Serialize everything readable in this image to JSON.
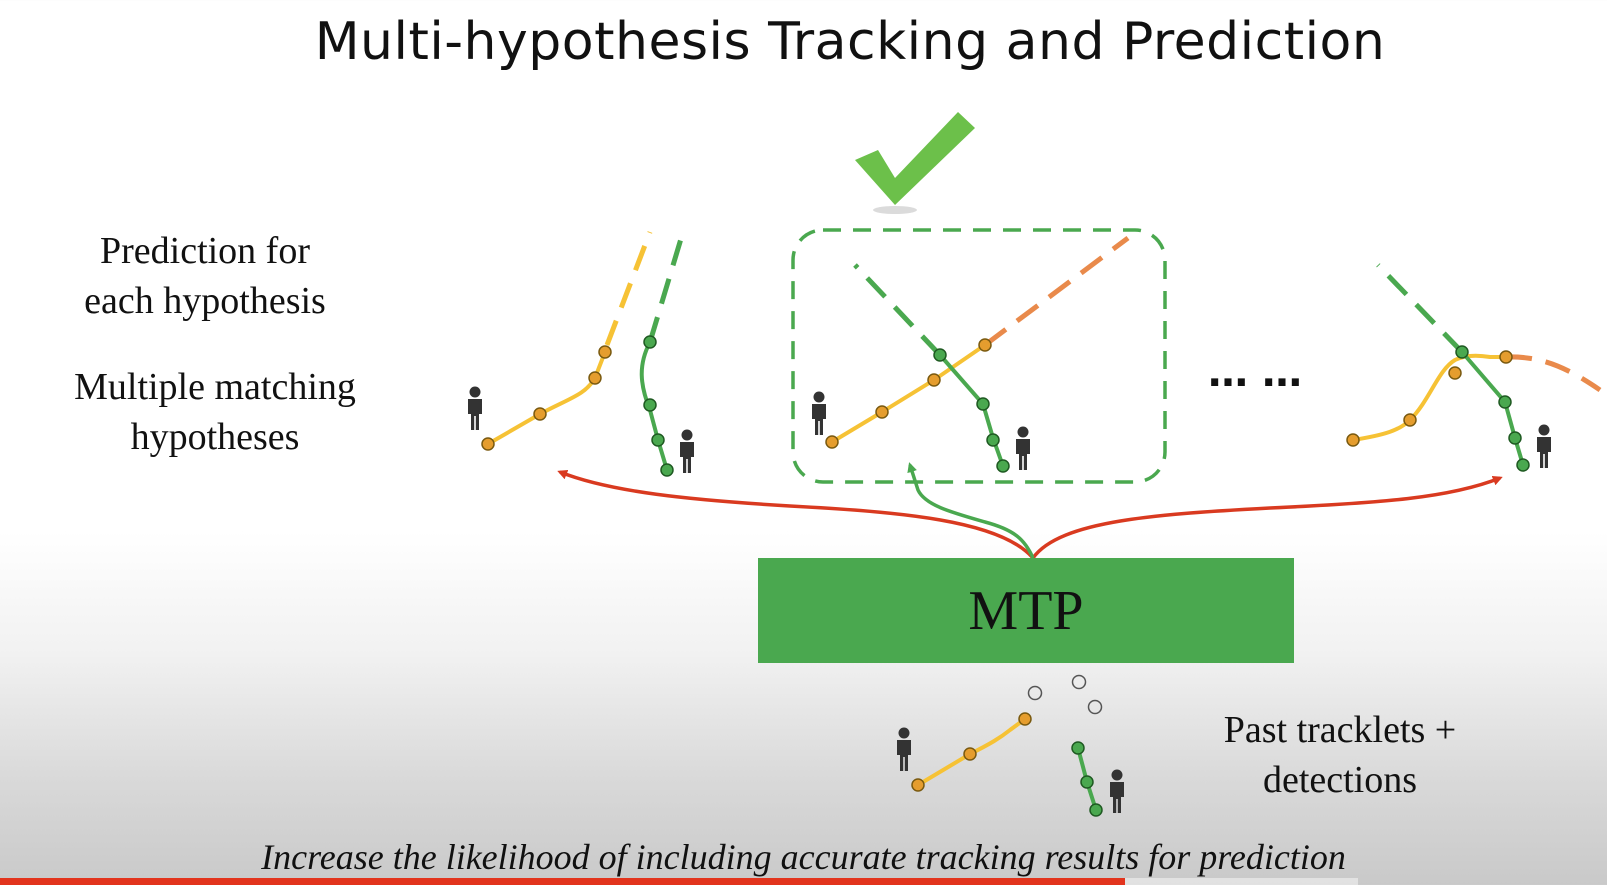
{
  "title": "Multi-hypothesis Tracking and Prediction",
  "labels": {
    "prediction_line1": "Prediction for",
    "prediction_line2": "each hypothesis",
    "multiple_line1": "Multiple matching",
    "multiple_line2": "hypotheses",
    "past_line1": "Past tracklets +",
    "past_line2": "detections"
  },
  "mtp_label": "MTP",
  "ellipsis": "… …",
  "footer": "Increase the likelihood of including accurate tracking results for prediction",
  "video_progress": {
    "played_fraction": 0.7,
    "buffered_fraction": 0.845
  },
  "colors": {
    "yellow_track": "#f6c235",
    "green_track": "#4aa84f",
    "orange_prediction": "#e98a4b",
    "red_arrow": "#d93a20",
    "check": "#6cc04a",
    "progress": "#e2341d"
  },
  "icons": [
    "checkmark-icon",
    "person-icon"
  ]
}
